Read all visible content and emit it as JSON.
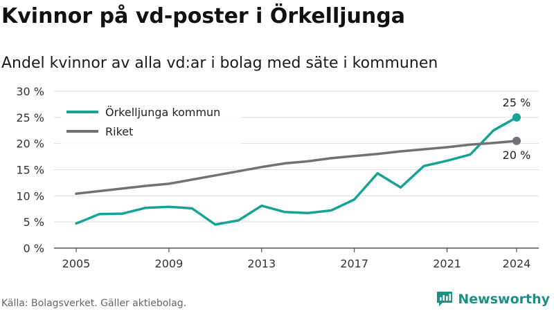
{
  "header": {
    "title": "Kvinnor på vd-poster i Örkelljunga",
    "subtitle": "Andel kvinnor av alla vd:ar i bolag med säte i kommunen"
  },
  "footer": {
    "source": "Källa: Bolagsverket. Gäller aktiebolag.",
    "brand": "Newsworthy",
    "brand_icon": "newsworthy-logo-icon"
  },
  "colors": {
    "orkelljunga": "#14a394",
    "riket": "#737078",
    "grid": "#dddddd",
    "brand": "#1e8f84"
  },
  "chart_data": {
    "type": "line",
    "title": "Kvinnor på vd-poster i Örkelljunga",
    "subtitle": "Andel kvinnor av alla vd:ar i bolag med säte i kommunen",
    "xlabel": "",
    "ylabel": "",
    "x": [
      2005,
      2006,
      2007,
      2008,
      2009,
      2010,
      2011,
      2012,
      2013,
      2014,
      2015,
      2016,
      2017,
      2018,
      2019,
      2020,
      2021,
      2022,
      2023,
      2024
    ],
    "x_ticks": [
      "2005",
      "2009",
      "2013",
      "2017",
      "2021",
      "2024"
    ],
    "y_ticks": [
      "0 %",
      "5 %",
      "10 %",
      "15 %",
      "20 %",
      "25 %",
      "30 %"
    ],
    "ylim": [
      0,
      30
    ],
    "grid": true,
    "legend_position": "top-left",
    "series": [
      {
        "name": "Örkelljunga kommun",
        "values": [
          4.7,
          6.5,
          6.6,
          7.7,
          7.9,
          7.6,
          4.5,
          5.3,
          8.1,
          6.9,
          6.7,
          7.2,
          9.3,
          14.3,
          11.6,
          15.7,
          16.7,
          17.9,
          22.5,
          25.0
        ],
        "end_label": "25 %"
      },
      {
        "name": "Riket",
        "values": [
          10.4,
          10.9,
          11.4,
          11.9,
          12.3,
          13.1,
          13.9,
          14.7,
          15.5,
          16.2,
          16.6,
          17.2,
          17.6,
          18.0,
          18.5,
          18.9,
          19.3,
          19.8,
          20.1,
          20.5
        ],
        "end_label": "20 %"
      }
    ]
  }
}
